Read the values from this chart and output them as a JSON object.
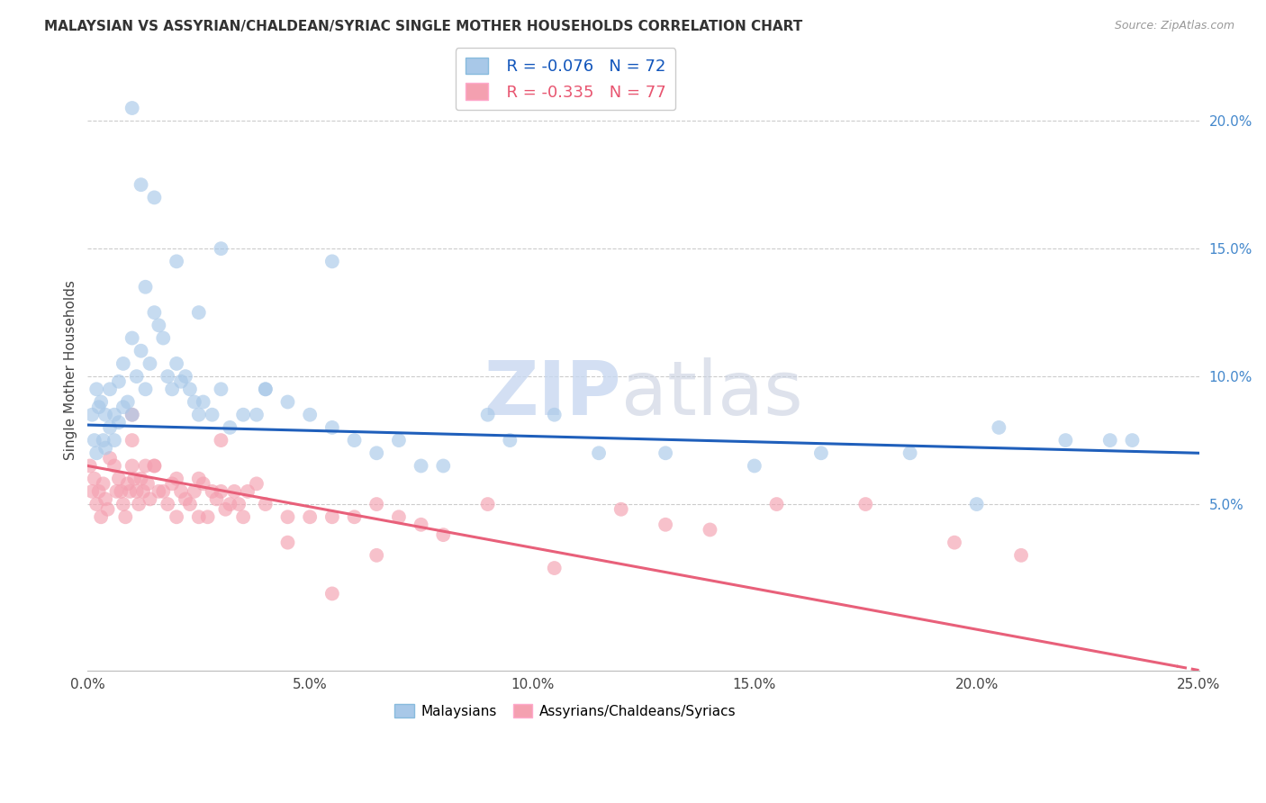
{
  "title": "MALAYSIAN VS ASSYRIAN/CHALDEAN/SYRIAC SINGLE MOTHER HOUSEHOLDS CORRELATION CHART",
  "source": "Source: ZipAtlas.com",
  "ylabel": "Single Mother Households",
  "xlabel_vals": [
    0.0,
    5.0,
    10.0,
    15.0,
    20.0,
    25.0
  ],
  "ylabel_vals": [
    5.0,
    10.0,
    15.0,
    20.0
  ],
  "xmin": 0.0,
  "xmax": 25.0,
  "ymin": -1.5,
  "ymax": 22.0,
  "legend_blue_r": "R = -0.076",
  "legend_blue_n": "N = 72",
  "legend_pink_r": "R = -0.335",
  "legend_pink_n": "N = 77",
  "blue_color": "#A8C8E8",
  "pink_color": "#F4A0B0",
  "blue_line_color": "#1F5FBB",
  "pink_line_color": "#E8607A",
  "blue_reg_x0": 0.0,
  "blue_reg_y0": 8.1,
  "blue_reg_x1": 25.0,
  "blue_reg_y1": 7.0,
  "pink_reg_x0": 0.0,
  "pink_reg_y0": 6.5,
  "pink_reg_x1": 25.0,
  "pink_reg_y1": -1.5,
  "pink_solid_end": 24.5,
  "blue_x": [
    0.1,
    0.15,
    0.2,
    0.2,
    0.25,
    0.3,
    0.35,
    0.4,
    0.4,
    0.5,
    0.5,
    0.6,
    0.6,
    0.7,
    0.7,
    0.8,
    0.8,
    0.9,
    1.0,
    1.0,
    1.1,
    1.2,
    1.3,
    1.3,
    1.4,
    1.5,
    1.6,
    1.7,
    1.8,
    1.9,
    2.0,
    2.1,
    2.2,
    2.3,
    2.4,
    2.5,
    2.6,
    2.8,
    3.0,
    3.2,
    3.5,
    3.8,
    4.0,
    4.5,
    5.0,
    5.5,
    6.0,
    6.5,
    7.0,
    8.0,
    9.5,
    10.5,
    11.5,
    13.0,
    15.0,
    16.5,
    18.5,
    20.5,
    22.0,
    23.5,
    1.0,
    1.2,
    1.5,
    2.0,
    2.5,
    3.0,
    4.0,
    5.5,
    7.5,
    9.0,
    20.0,
    23.0
  ],
  "blue_y": [
    8.5,
    7.5,
    9.5,
    7.0,
    8.8,
    9.0,
    7.5,
    8.5,
    7.2,
    9.5,
    8.0,
    8.5,
    7.5,
    9.8,
    8.2,
    10.5,
    8.8,
    9.0,
    11.5,
    8.5,
    10.0,
    11.0,
    13.5,
    9.5,
    10.5,
    12.5,
    12.0,
    11.5,
    10.0,
    9.5,
    10.5,
    9.8,
    10.0,
    9.5,
    9.0,
    8.5,
    9.0,
    8.5,
    9.5,
    8.0,
    8.5,
    8.5,
    9.5,
    9.0,
    8.5,
    8.0,
    7.5,
    7.0,
    7.5,
    6.5,
    7.5,
    8.5,
    7.0,
    7.0,
    6.5,
    7.0,
    7.0,
    8.0,
    7.5,
    7.5,
    20.5,
    17.5,
    17.0,
    14.5,
    12.5,
    15.0,
    9.5,
    14.5,
    6.5,
    8.5,
    5.0,
    7.5
  ],
  "pink_x": [
    0.05,
    0.1,
    0.15,
    0.2,
    0.25,
    0.3,
    0.35,
    0.4,
    0.45,
    0.5,
    0.6,
    0.65,
    0.7,
    0.75,
    0.8,
    0.85,
    0.9,
    0.95,
    1.0,
    1.0,
    1.05,
    1.1,
    1.15,
    1.2,
    1.25,
    1.3,
    1.35,
    1.4,
    1.5,
    1.6,
    1.7,
    1.8,
    1.9,
    2.0,
    2.1,
    2.2,
    2.3,
    2.4,
    2.5,
    2.6,
    2.7,
    2.8,
    2.9,
    3.0,
    3.1,
    3.2,
    3.3,
    3.4,
    3.6,
    3.8,
    4.0,
    4.5,
    5.0,
    5.5,
    6.0,
    6.5,
    7.0,
    7.5,
    8.0,
    9.0,
    10.5,
    12.0,
    13.0,
    14.0,
    15.5,
    17.5,
    19.5,
    21.0,
    1.0,
    1.5,
    2.0,
    2.5,
    3.0,
    3.5,
    4.5,
    5.5,
    6.5
  ],
  "pink_y": [
    6.5,
    5.5,
    6.0,
    5.0,
    5.5,
    4.5,
    5.8,
    5.2,
    4.8,
    6.8,
    6.5,
    5.5,
    6.0,
    5.5,
    5.0,
    4.5,
    5.8,
    5.5,
    7.5,
    6.5,
    6.0,
    5.5,
    5.0,
    6.0,
    5.5,
    6.5,
    5.8,
    5.2,
    6.5,
    5.5,
    5.5,
    5.0,
    5.8,
    6.0,
    5.5,
    5.2,
    5.0,
    5.5,
    6.0,
    5.8,
    4.5,
    5.5,
    5.2,
    5.5,
    4.8,
    5.0,
    5.5,
    5.0,
    5.5,
    5.8,
    5.0,
    4.5,
    4.5,
    4.5,
    4.5,
    5.0,
    4.5,
    4.2,
    3.8,
    5.0,
    2.5,
    4.8,
    4.2,
    4.0,
    5.0,
    5.0,
    3.5,
    3.0,
    8.5,
    6.5,
    4.5,
    4.5,
    7.5,
    4.5,
    3.5,
    1.5,
    3.0
  ]
}
